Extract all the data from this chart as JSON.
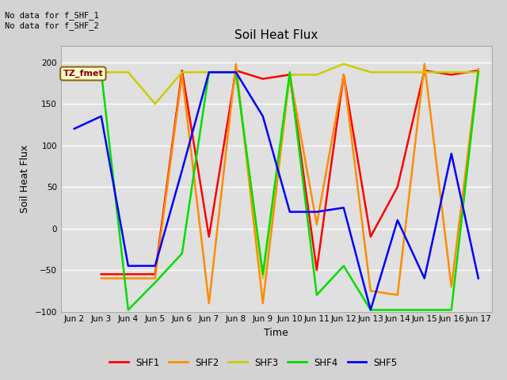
{
  "title": "Soil Heat Flux",
  "xlabel": "Time",
  "ylabel": "Soil Heat Flux",
  "ylim": [
    -100,
    220
  ],
  "yticks": [
    -100,
    -50,
    0,
    50,
    100,
    150,
    200
  ],
  "annotation_text": "No data for f_SHF_1\nNo data for f_SHF_2",
  "tz_label": "TZ_fmet",
  "x_labels": [
    "Jun 2",
    "Jun 3",
    "Jun 4",
    "Jun 5",
    "Jun 6",
    "Jun 7",
    "Jun 8",
    "Jun 9",
    "Jun 10",
    "Jun 11",
    "Jun 12",
    "Jun 13",
    "Jun 14",
    "Jun 15",
    "Jun 16",
    "Jun 17"
  ],
  "x_values": [
    2,
    3,
    4,
    5,
    6,
    7,
    8,
    9,
    10,
    11,
    12,
    13,
    14,
    15,
    16,
    17
  ],
  "series": {
    "SHF1": {
      "color": "#ff0000",
      "values": [
        null,
        -55,
        -55,
        -55,
        190,
        -10,
        190,
        180,
        185,
        -50,
        185,
        -10,
        50,
        190,
        185,
        190
      ]
    },
    "SHF2": {
      "color": "#ff8c00",
      "values": [
        null,
        -60,
        -60,
        -60,
        185,
        -90,
        198,
        -90,
        185,
        5,
        185,
        -75,
        -80,
        198,
        -70,
        192
      ]
    },
    "SHF3": {
      "color": "#cccc00",
      "values": [
        null,
        188,
        188,
        150,
        188,
        188,
        188,
        -60,
        185,
        185,
        198,
        188,
        188,
        188,
        188,
        188
      ]
    },
    "SHF4": {
      "color": "#00dd00",
      "values": [
        188,
        188,
        -98,
        -65,
        -30,
        188,
        188,
        -55,
        188,
        -80,
        -45,
        -98,
        -98,
        -98,
        -98,
        188
      ]
    },
    "SHF5": {
      "color": "#0000ff",
      "values": [
        120,
        135,
        -45,
        -45,
        70,
        188,
        188,
        135,
        20,
        20,
        25,
        -98,
        10,
        -60,
        90,
        -60
      ]
    }
  },
  "legend_entries": [
    "SHF1",
    "SHF2",
    "SHF3",
    "SHF4",
    "SHF5"
  ],
  "legend_colors": [
    "#ff0000",
    "#ff8c00",
    "#cccc00",
    "#00dd00",
    "#0000ff"
  ],
  "bg_color": "#d3d3d3",
  "plot_bg_color": "#e0e0e0",
  "grid_color": "#ffffff",
  "spine_color": "#aaaaaa"
}
